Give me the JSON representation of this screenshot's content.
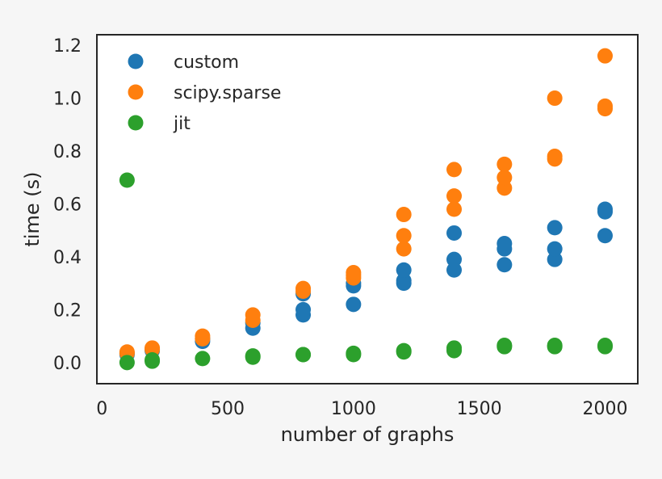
{
  "chart_data": {
    "type": "scatter",
    "title": "",
    "xlabel": "number of graphs",
    "ylabel": "time (s)",
    "xlim": [
      -20,
      2130
    ],
    "ylim": [
      -0.08,
      1.24
    ],
    "xticks": [
      0,
      500,
      1000,
      1500,
      2000
    ],
    "yticks": [
      0.0,
      0.2,
      0.4,
      0.6,
      0.8,
      1.0,
      1.2
    ],
    "grid": false,
    "legend": "top-left",
    "series": [
      {
        "name": "custom",
        "color": "#1f77b4",
        "points": [
          [
            100,
            0.03
          ],
          [
            100,
            0.035
          ],
          [
            200,
            0.045
          ],
          [
            200,
            0.05
          ],
          [
            400,
            0.08
          ],
          [
            400,
            0.09
          ],
          [
            600,
            0.13
          ],
          [
            600,
            0.15
          ],
          [
            800,
            0.18
          ],
          [
            800,
            0.2
          ],
          [
            800,
            0.26
          ],
          [
            1000,
            0.22
          ],
          [
            1000,
            0.29
          ],
          [
            1000,
            0.3
          ],
          [
            1200,
            0.3
          ],
          [
            1200,
            0.31
          ],
          [
            1200,
            0.35
          ],
          [
            1400,
            0.35
          ],
          [
            1400,
            0.39
          ],
          [
            1400,
            0.49
          ],
          [
            1600,
            0.37
          ],
          [
            1600,
            0.43
          ],
          [
            1600,
            0.45
          ],
          [
            1800,
            0.39
          ],
          [
            1800,
            0.43
          ],
          [
            1800,
            0.51
          ],
          [
            2000,
            0.48
          ],
          [
            2000,
            0.57
          ],
          [
            2000,
            0.58
          ]
        ]
      },
      {
        "name": "scipy.sparse",
        "color": "#ff7f0e",
        "points": [
          [
            100,
            0.035
          ],
          [
            100,
            0.04
          ],
          [
            200,
            0.05
          ],
          [
            200,
            0.055
          ],
          [
            400,
            0.09
          ],
          [
            400,
            0.1
          ],
          [
            600,
            0.16
          ],
          [
            600,
            0.18
          ],
          [
            800,
            0.27
          ],
          [
            800,
            0.28
          ],
          [
            1000,
            0.32
          ],
          [
            1000,
            0.33
          ],
          [
            1000,
            0.34
          ],
          [
            1200,
            0.43
          ],
          [
            1200,
            0.48
          ],
          [
            1200,
            0.56
          ],
          [
            1400,
            0.58
          ],
          [
            1400,
            0.63
          ],
          [
            1400,
            0.73
          ],
          [
            1600,
            0.66
          ],
          [
            1600,
            0.7
          ],
          [
            1600,
            0.75
          ],
          [
            1800,
            0.77
          ],
          [
            1800,
            0.78
          ],
          [
            1800,
            1.0
          ],
          [
            2000,
            0.96
          ],
          [
            2000,
            0.97
          ],
          [
            2000,
            1.16
          ]
        ]
      },
      {
        "name": "jit",
        "color": "#2ca02c",
        "points": [
          [
            100,
            0.69
          ],
          [
            100,
            0.0
          ],
          [
            200,
            0.005
          ],
          [
            200,
            0.01
          ],
          [
            400,
            0.015
          ],
          [
            600,
            0.02
          ],
          [
            600,
            0.025
          ],
          [
            800,
            0.03
          ],
          [
            800,
            0.03
          ],
          [
            1000,
            0.03
          ],
          [
            1000,
            0.035
          ],
          [
            1200,
            0.04
          ],
          [
            1200,
            0.045
          ],
          [
            1400,
            0.045
          ],
          [
            1400,
            0.055
          ],
          [
            1600,
            0.06
          ],
          [
            1600,
            0.065
          ],
          [
            1800,
            0.06
          ],
          [
            1800,
            0.065
          ],
          [
            2000,
            0.06
          ],
          [
            2000,
            0.065
          ]
        ]
      }
    ]
  }
}
